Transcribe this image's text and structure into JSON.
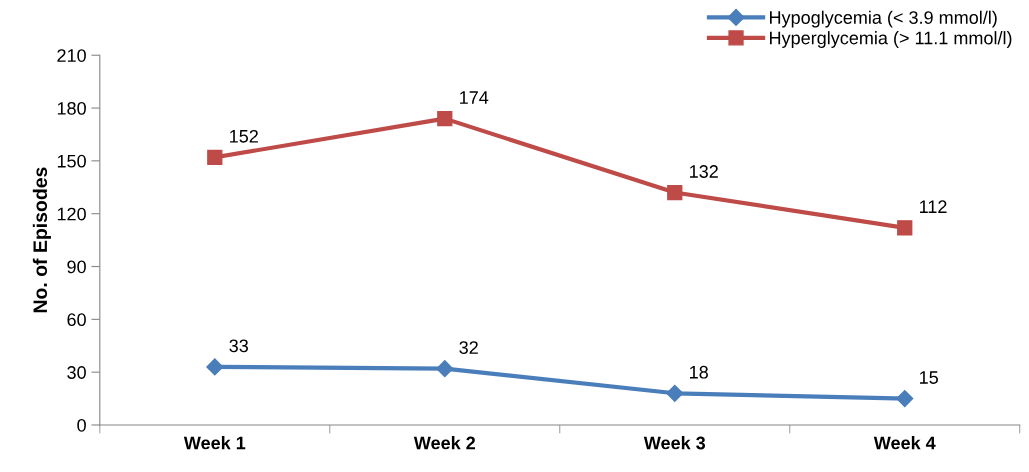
{
  "chart_data": {
    "type": "line",
    "ylabel": "No. of Episodes",
    "categories": [
      "Week 1",
      "Week 2",
      "Week 3",
      "Week 4"
    ],
    "series": [
      {
        "name": "Hypoglycemia (< 3.9 mmol/l)",
        "color": "#4a7ebb",
        "marker": "diamond",
        "values": [
          33,
          32,
          18,
          15
        ]
      },
      {
        "name": "Hyperglycemia (> 11.1 mmol/l)",
        "color": "#be4b48",
        "marker": "square",
        "values": [
          152,
          174,
          132,
          112
        ]
      }
    ],
    "ylim": [
      0,
      210
    ],
    "yticks": [
      0,
      30,
      60,
      90,
      120,
      150,
      180,
      210
    ],
    "grid": false,
    "legend": "top right",
    "data_labels": true,
    "line_style": "solid"
  }
}
